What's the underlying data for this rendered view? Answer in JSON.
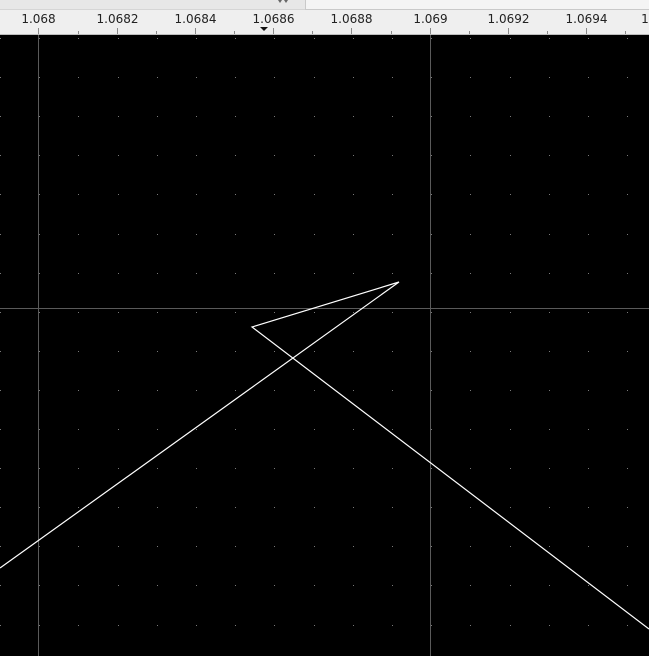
{
  "ruler": {
    "ticks": [
      "1.068",
      "1.0682",
      "1.0684",
      "1.0686",
      "1.0688",
      "1.069",
      "1.0692",
      "1.0694",
      "1"
    ]
  },
  "colors": {
    "canvas_bg": "#000000",
    "grid_dot": "#7a7a7a",
    "axis_line": "#5a5a5a",
    "curve": "#ffffff",
    "ruler_bg": "#efefef",
    "ruler_text": "#222222"
  },
  "icons": {
    "ruler_marker": "triangle-down-icon",
    "scroll_handle": "scroll-handle-icon"
  }
}
